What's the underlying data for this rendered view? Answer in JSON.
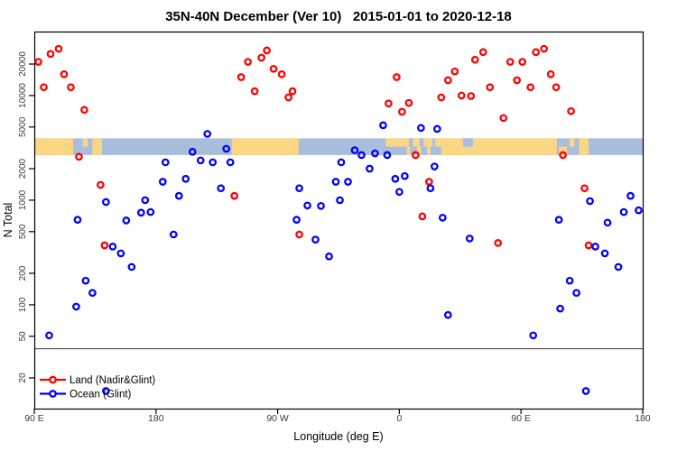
{
  "title": "35N-40N December (Ver 10)   2015-01-01 to 2020-12-18",
  "chart_data": {
    "type": "scatter",
    "title": "35N-40N December (Ver 10)   2015-01-01 to 2020-12-18",
    "xlabel": "Longitude (deg E)",
    "ylabel": "N Total",
    "x_axis": {
      "range": [
        90,
        540
      ],
      "ticks": [
        90,
        180,
        270,
        360,
        450,
        540
      ],
      "labels": [
        "90 E",
        "180",
        "90 W",
        "0",
        "90 E",
        "180"
      ]
    },
    "y_axis": {
      "scale": "log",
      "range": [
        10,
        41000
      ],
      "ticks": [
        20,
        50,
        100,
        200,
        500,
        1000,
        2000,
        5000,
        10000,
        20000
      ]
    },
    "reference_line_n": 38,
    "legend": {
      "position": "bottom-left",
      "entries": [
        "Land (Nadir&Glint)",
        "Ocean (Glint)"
      ]
    },
    "series": [
      {
        "name": "Land (Nadir&Glint)",
        "color": "#FF0000",
        "points": [
          [
            102,
            25000
          ],
          [
            108,
            28000
          ],
          [
            93,
            21000
          ],
          [
            112,
            16000
          ],
          [
            97,
            12000
          ],
          [
            117,
            12000
          ],
          [
            127,
            7300
          ],
          [
            123,
            2600
          ],
          [
            139,
            1400
          ],
          [
            142,
            370
          ],
          [
            248,
            21000
          ],
          [
            258,
            23000
          ],
          [
            262,
            27000
          ],
          [
            243,
            15000
          ],
          [
            267,
            18000
          ],
          [
            273,
            16000
          ],
          [
            253,
            11000
          ],
          [
            278,
            9600
          ],
          [
            281,
            11000
          ],
          [
            238,
            1100
          ],
          [
            286,
            470
          ],
          [
            358,
            15000
          ],
          [
            352,
            8400
          ],
          [
            367,
            8500
          ],
          [
            362,
            7000
          ],
          [
            391,
            9600
          ],
          [
            406,
            10000
          ],
          [
            413,
            9900
          ],
          [
            401,
            17000
          ],
          [
            396,
            14000
          ],
          [
            416,
            22000
          ],
          [
            422,
            26000
          ],
          [
            372,
            2700
          ],
          [
            382,
            1500
          ],
          [
            377,
            700
          ],
          [
            461,
            26000
          ],
          [
            467,
            28000
          ],
          [
            442,
            21000
          ],
          [
            451,
            21000
          ],
          [
            447,
            14000
          ],
          [
            457,
            12000
          ],
          [
            472,
            16000
          ],
          [
            476,
            12000
          ],
          [
            427,
            12000
          ],
          [
            487,
            7100
          ],
          [
            437,
            6100
          ],
          [
            481,
            2700
          ],
          [
            497,
            1300
          ],
          [
            433,
            390
          ],
          [
            500,
            370
          ]
        ]
      },
      {
        "name": "Ocean (Glint)",
        "color": "#0000FF",
        "points": [
          [
            187,
            2300
          ],
          [
            185,
            1500
          ],
          [
            202,
            1600
          ],
          [
            197,
            1100
          ],
          [
            143,
            960
          ],
          [
            172,
            1000
          ],
          [
            176,
            770
          ],
          [
            169,
            760
          ],
          [
            122,
            650
          ],
          [
            158,
            640
          ],
          [
            218,
            4300
          ],
          [
            207,
            2900
          ],
          [
            213,
            2400
          ],
          [
            232,
            3100
          ],
          [
            222,
            2300
          ],
          [
            235,
            2300
          ],
          [
            228,
            1300
          ],
          [
            286,
            1300
          ],
          [
            292,
            890
          ],
          [
            302,
            880
          ],
          [
            284,
            650
          ],
          [
            348,
            5200
          ],
          [
            376,
            4900
          ],
          [
            388,
            4800
          ],
          [
            327,
            3000
          ],
          [
            332,
            2700
          ],
          [
            342,
            2800
          ],
          [
            351,
            2700
          ],
          [
            317,
            2300
          ],
          [
            338,
            2000
          ],
          [
            313,
            1500
          ],
          [
            322,
            1500
          ],
          [
            316,
            1000
          ],
          [
            357,
            1600
          ],
          [
            364,
            1700
          ],
          [
            360,
            1200
          ],
          [
            386,
            2100
          ],
          [
            383,
            1300
          ],
          [
            392,
            680
          ],
          [
            412,
            430
          ],
          [
            396,
            80
          ],
          [
            501,
            980
          ],
          [
            531,
            1100
          ],
          [
            526,
            770
          ],
          [
            537,
            800
          ],
          [
            478,
            650
          ],
          [
            514,
            610
          ],
          [
            148,
            360
          ],
          [
            154,
            310
          ],
          [
            162,
            230
          ],
          [
            193,
            470
          ],
          [
            128,
            170
          ],
          [
            133,
            130
          ],
          [
            121,
            96
          ],
          [
            101,
            51
          ],
          [
            143,
            15
          ],
          [
            298,
            420
          ],
          [
            308,
            290
          ],
          [
            505,
            360
          ],
          [
            512,
            310
          ],
          [
            522,
            230
          ],
          [
            486,
            170
          ],
          [
            491,
            130
          ],
          [
            479,
            92
          ],
          [
            459,
            51
          ],
          [
            498,
            15
          ]
        ]
      }
    ],
    "map_band": {
      "n_top": 3900,
      "n_bottom": 2700,
      "land_color": "#FBD685",
      "ocean_color": "#A9BDDC",
      "land_segments": [
        {
          "from": 90,
          "to": 118.7,
          "half": "both"
        },
        {
          "from": 126,
          "to": 129.5,
          "half": "top"
        },
        {
          "from": 133,
          "to": 140,
          "half": "both"
        },
        {
          "from": 236,
          "to": 285.5,
          "half": "both"
        },
        {
          "from": 350,
          "to": 391,
          "half": "top"
        },
        {
          "from": 365.5,
          "to": 368,
          "half": "bottom"
        },
        {
          "from": 373,
          "to": 376,
          "half": "bottom"
        },
        {
          "from": 380.5,
          "to": 383,
          "half": "bottom"
        },
        {
          "from": 391,
          "to": 476.5,
          "half": "both"
        },
        {
          "from": 478,
          "to": 484,
          "half": "bottom"
        },
        {
          "from": 486,
          "to": 489.5,
          "half": "top"
        },
        {
          "from": 493,
          "to": 500,
          "half": "both"
        }
      ],
      "water_holes": [
        {
          "from": 367,
          "to": 370,
          "half": "top"
        },
        {
          "from": 375,
          "to": 378,
          "half": "top"
        },
        {
          "from": 384.5,
          "to": 386.5,
          "half": "top"
        },
        {
          "from": 407,
          "to": 414.5,
          "half": "top"
        }
      ]
    }
  }
}
